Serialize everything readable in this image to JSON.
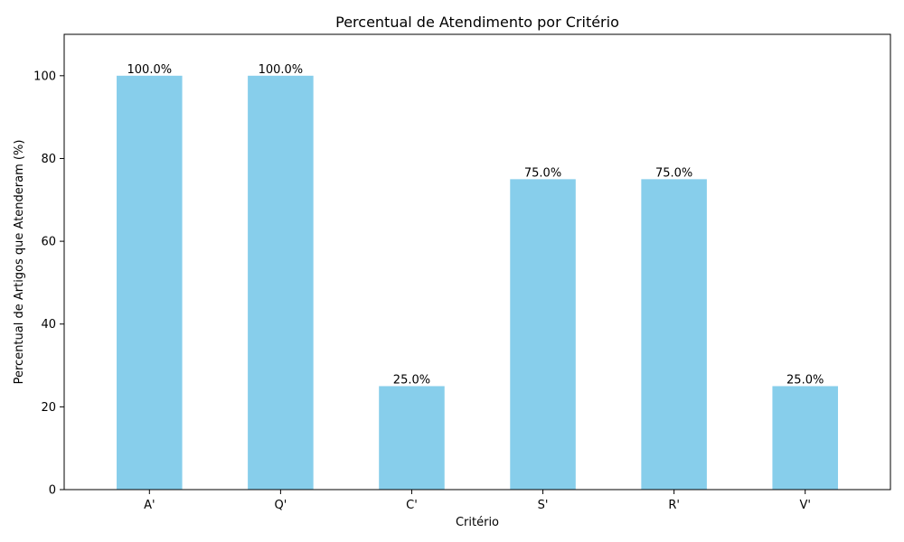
{
  "chart_data": {
    "type": "bar",
    "title": "Percentual de Atendimento por Critério",
    "xlabel": "Critério",
    "ylabel": "Percentual de Artigos que Atenderam (%)",
    "categories": [
      "A'",
      "Q'",
      "C'",
      "S'",
      "R'",
      "V'"
    ],
    "values": [
      100.0,
      100.0,
      25.0,
      75.0,
      75.0,
      25.0
    ],
    "data_labels": [
      "100.0%",
      "100.0%",
      "25.0%",
      "75.0%",
      "75.0%",
      "25.0%"
    ],
    "ylim": [
      0,
      110
    ],
    "yticks": [
      0,
      20,
      40,
      60,
      80,
      100
    ],
    "ytick_labels": [
      "0",
      "20",
      "40",
      "60",
      "80",
      "100"
    ],
    "grid": false,
    "legend": "none",
    "bar_color": "#87CEEB"
  }
}
